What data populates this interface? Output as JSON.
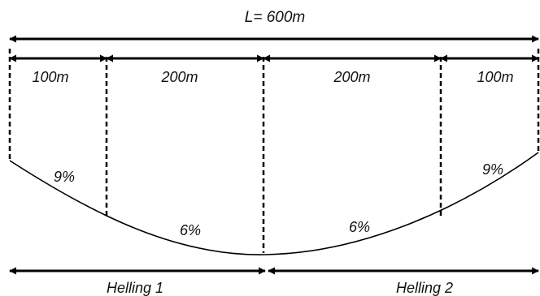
{
  "total_length": "L= 600m",
  "segments": [
    "100m",
    "200m",
    "200m",
    "100m"
  ],
  "grades": [
    "9%",
    "6%",
    "6%",
    "9%"
  ],
  "slopes": [
    "Helling 1",
    "Helling 2"
  ]
}
